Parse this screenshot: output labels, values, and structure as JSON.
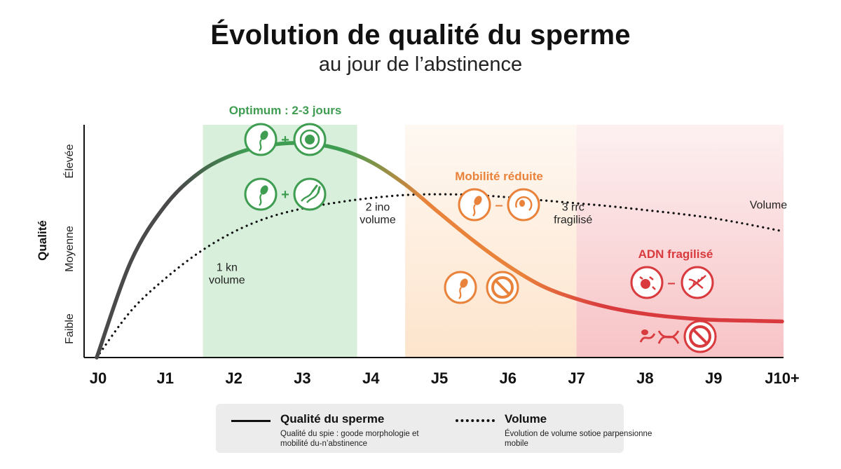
{
  "title": "Évolution de qualité du sperme",
  "subtitle": "au jour de l’abstinence",
  "colors": {
    "green": "#3f9d52",
    "green_zone": "#d6efd9",
    "orange": "#e9823a",
    "orange_zone": "#fde4cc",
    "red": "#d93a3e",
    "red_zone": "#f7c3c6",
    "dark": "#4a4a4a"
  },
  "chart_data": {
    "type": "line",
    "x": [
      "J0",
      "J1",
      "J2",
      "J3",
      "J4",
      "J5",
      "J6",
      "J7",
      "J8",
      "J9",
      "J10+"
    ],
    "ylabel": "Qualité",
    "ytick_labels": [
      "Faible",
      "Moyenne",
      "Élevée"
    ],
    "ylim": [
      0,
      3
    ],
    "series": [
      {
        "name": "Qualité du sperme",
        "style": "solid-gradient",
        "points": [
          [
            0,
            0.0
          ],
          [
            0.5,
            1.28
          ],
          [
            1,
            2.02
          ],
          [
            1.5,
            2.46
          ],
          [
            2,
            2.7
          ],
          [
            2.5,
            2.82
          ],
          [
            3,
            2.85
          ],
          [
            3.5,
            2.78
          ],
          [
            4,
            2.6
          ],
          [
            4.5,
            2.3
          ],
          [
            5,
            1.92
          ],
          [
            5.5,
            1.55
          ],
          [
            6,
            1.22
          ],
          [
            6.5,
            0.95
          ],
          [
            7,
            0.78
          ],
          [
            7.5,
            0.66
          ],
          [
            8,
            0.58
          ],
          [
            8.5,
            0.53
          ],
          [
            9,
            0.5
          ],
          [
            9.5,
            0.49
          ],
          [
            10,
            0.48
          ]
        ]
      },
      {
        "name": "Volume",
        "style": "dotted",
        "points": [
          [
            0,
            0.0
          ],
          [
            0.5,
            0.62
          ],
          [
            1,
            1.05
          ],
          [
            1.5,
            1.4
          ],
          [
            2,
            1.67
          ],
          [
            2.5,
            1.86
          ],
          [
            3,
            1.98
          ],
          [
            3.5,
            2.06
          ],
          [
            4,
            2.12
          ],
          [
            4.5,
            2.16
          ],
          [
            5,
            2.17
          ],
          [
            5.5,
            2.16
          ],
          [
            6,
            2.13
          ],
          [
            6.5,
            2.09
          ],
          [
            7,
            2.05
          ],
          [
            7.5,
            2.01
          ],
          [
            8,
            1.96
          ],
          [
            8.5,
            1.91
          ],
          [
            9,
            1.85
          ],
          [
            9.5,
            1.77
          ],
          [
            10,
            1.68
          ]
        ]
      }
    ],
    "zones": [
      {
        "name": "optimum",
        "from": 1.55,
        "to": 3.8,
        "label": "Optimum : 2-3 jours",
        "color_key": "green"
      },
      {
        "name": "mobility",
        "from": 4.5,
        "to": 7.0,
        "label": "Mobilité réduite",
        "color_key": "orange"
      },
      {
        "name": "dna",
        "from": 7.0,
        "to": 10.0,
        "label": "ADN fragilisé",
        "color_key": "red"
      }
    ],
    "annotations": [
      {
        "line1": "1 kn",
        "line2": "volume",
        "x": 1.9,
        "y": 1.15
      },
      {
        "line1": "2 ino",
        "line2": "volume",
        "x": 4.1,
        "y": 1.95
      },
      {
        "line1": "3 rrc",
        "line2": "fragilisé",
        "x": 6.95,
        "y": 1.95
      },
      {
        "line1": "Volume",
        "line2": "",
        "x": 9.8,
        "y": 1.98
      }
    ],
    "grid": false
  },
  "icons": {
    "optimum_row1": {
      "left": "sperm-icon",
      "op": "+",
      "right": "egg-cell-icon"
    },
    "optimum_row2": {
      "left": "sperm-icon",
      "op": "+",
      "right": "motile-sperm-icon"
    },
    "mobility_row1": {
      "left": "sperm-icon",
      "op": "–",
      "right": "circling-sperm-icon"
    },
    "mobility_row2": {
      "left": "sperm-icon",
      "op": "",
      "right": "prohibited-icon"
    },
    "dna_row1": {
      "left": "damaged-cell-icon",
      "op": "–",
      "right": "dna-icon"
    },
    "dna_row2": {
      "left": "broken-dna-icon",
      "op": "",
      "right": "prohibited-icon"
    }
  },
  "legend": {
    "solid_title": "Qualité du sperme",
    "solid_desc": "Qualité du spie : goode morphologie et mobilité du-n’abstinence",
    "dotted_title": "Volume",
    "dotted_desc": "Évolution de volume sotioe parpensionne mobile"
  }
}
